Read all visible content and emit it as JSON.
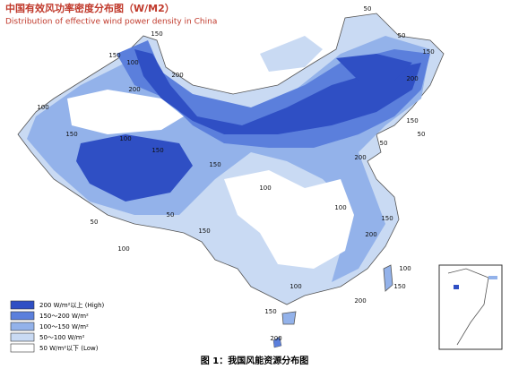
{
  "header": {
    "title": "中国有效风功率密度分布图（W/M2）",
    "subtitle": "Distribution of effective wind power density in China"
  },
  "legend": {
    "items": [
      {
        "label": "200 W/m²以上 (High)",
        "color": "#2f4fc4"
      },
      {
        "label": "150～200 W/m²",
        "color": "#5b7fdc"
      },
      {
        "label": "100～150 W/m²",
        "color": "#93b2ea"
      },
      {
        "label": "50～100 W/m²",
        "color": "#c9daf3"
      },
      {
        "label": "50 W/m²以下 (Low)",
        "color": "#ffffff"
      }
    ]
  },
  "contour_labels": [
    50,
    150,
    150,
    100,
    200,
    50,
    150,
    200,
    100,
    200,
    150,
    100,
    150,
    150,
    50,
    50,
    100,
    150,
    200,
    150,
    50,
    50,
    100,
    150,
    200,
    100,
    150,
    200,
    100,
    200,
    150,
    100
  ],
  "caption": "图 1：我国风能资源分布图"
}
